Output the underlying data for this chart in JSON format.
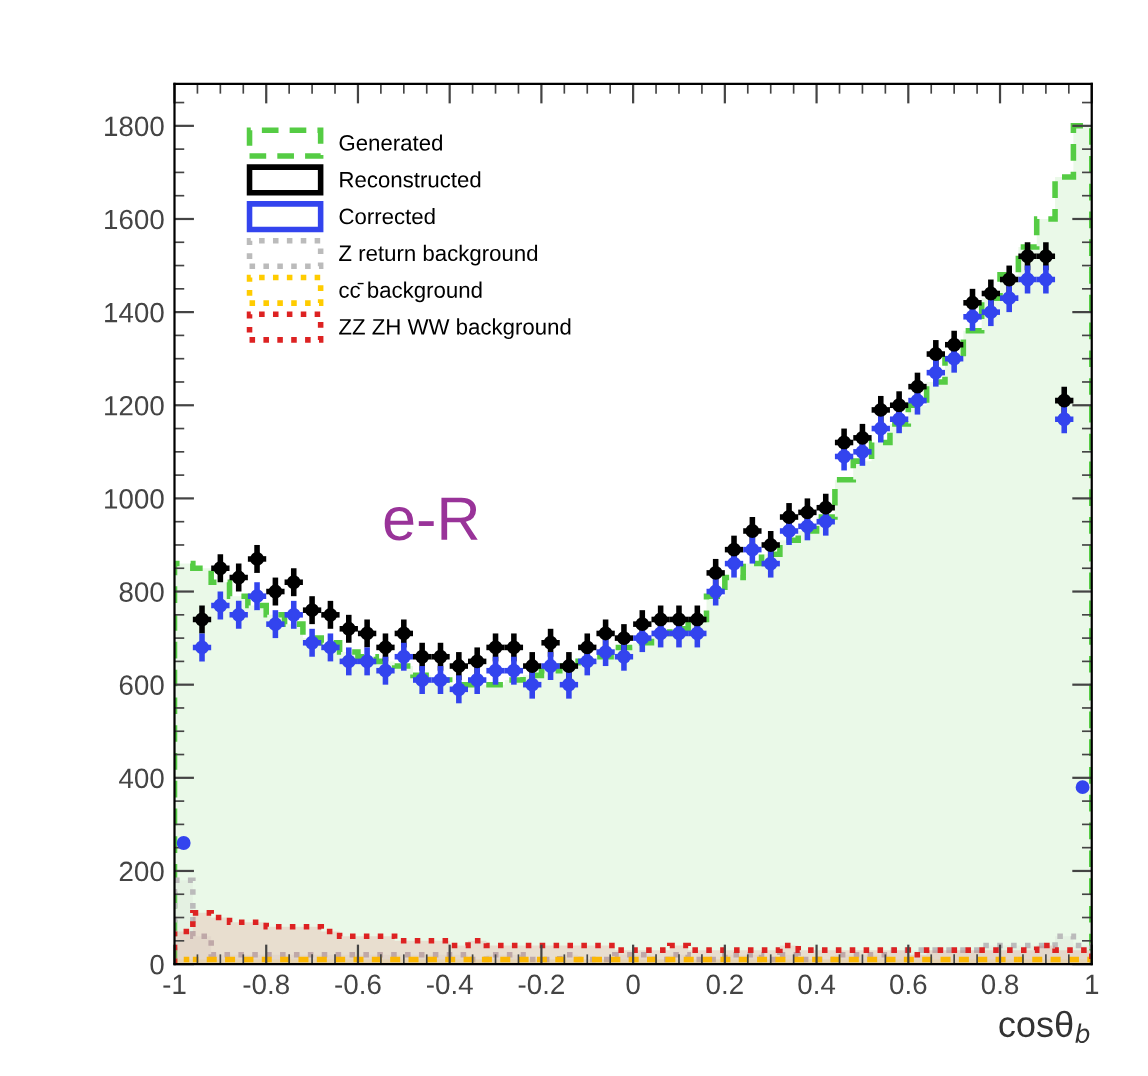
{
  "chart_data": {
    "type": "histogram",
    "xlabel": "cosθ$_{b}$",
    "bins": [
      -1,
      -0.96,
      -0.92,
      -0.88,
      -0.84,
      -0.8,
      -0.76,
      -0.72,
      -0.68,
      -0.64,
      -0.6,
      -0.56,
      -0.52,
      -0.48,
      -0.44,
      -0.4,
      -0.36,
      -0.32,
      -0.28,
      -0.24,
      -0.2,
      -0.16,
      -0.12,
      -0.08,
      -0.04,
      0,
      0.04,
      0.08,
      0.12,
      0.16,
      0.2,
      0.24,
      0.28,
      0.32,
      0.36,
      0.4,
      0.44,
      0.48,
      0.52,
      0.56,
      0.6,
      0.64,
      0.68,
      0.72,
      0.76,
      0.8,
      0.84,
      0.88,
      0.92,
      0.96,
      1
    ],
    "x": [
      -0.98,
      -0.94,
      -0.9,
      -0.86,
      -0.82,
      -0.78,
      -0.74,
      -0.7,
      -0.66,
      -0.62,
      -0.58,
      -0.54,
      -0.5,
      -0.46,
      -0.42,
      -0.38,
      -0.34,
      -0.3,
      -0.26,
      -0.22,
      -0.18,
      -0.14,
      -0.1,
      -0.06,
      -0.02,
      0.02,
      0.06,
      0.1,
      0.14,
      0.18,
      0.22,
      0.26,
      0.3,
      0.34,
      0.38,
      0.42,
      0.46,
      0.5,
      0.54,
      0.58,
      0.62,
      0.66,
      0.7,
      0.74,
      0.78,
      0.82,
      0.86,
      0.9,
      0.94,
      0.98
    ],
    "series": [
      {
        "name": "Generated",
        "type": "histogram",
        "color": "#55cc44",
        "line_style": "dashed",
        "values": [
          860,
          850,
          820,
          790,
          770,
          750,
          730,
          700,
          690,
          670,
          660,
          650,
          640,
          620,
          610,
          600,
          600,
          600,
          610,
          620,
          630,
          640,
          650,
          660,
          680,
          690,
          710,
          720,
          740,
          790,
          830,
          860,
          880,
          910,
          930,
          960,
          1040,
          1080,
          1120,
          1160,
          1200,
          1250,
          1300,
          1360,
          1430,
          1480,
          1540,
          1600,
          1690,
          1800
        ]
      },
      {
        "name": "Reconstructed",
        "type": "scatter",
        "color": "#000000",
        "values": [
          null,
          740,
          850,
          830,
          870,
          800,
          820,
          760,
          750,
          720,
          710,
          680,
          710,
          660,
          660,
          640,
          650,
          680,
          680,
          640,
          690,
          640,
          680,
          710,
          700,
          730,
          740,
          740,
          740,
          840,
          890,
          930,
          900,
          960,
          970,
          980,
          1120,
          1130,
          1190,
          1200,
          1240,
          1310,
          1330,
          1420,
          1440,
          1470,
          1520,
          1520,
          1210,
          null
        ],
        "errors": [
          null,
          30,
          30,
          30,
          30,
          30,
          30,
          30,
          30,
          30,
          30,
          30,
          30,
          30,
          30,
          30,
          30,
          30,
          30,
          30,
          30,
          30,
          30,
          30,
          30,
          30,
          30,
          30,
          30,
          30,
          30,
          30,
          30,
          30,
          30,
          30,
          30,
          30,
          30,
          30,
          30,
          30,
          30,
          30,
          30,
          30,
          30,
          30,
          30,
          null
        ],
        "xerrors": [
          null,
          0.02,
          0.02,
          0.02,
          0.02,
          0.02,
          0.02,
          0.02,
          0.02,
          0.02,
          0.02,
          0.02,
          0.02,
          0.02,
          0.02,
          0.02,
          0.02,
          0.02,
          0.02,
          0.02,
          0.02,
          0.02,
          0.02,
          0.02,
          0.02,
          0.02,
          0.02,
          0.02,
          0.02,
          0.02,
          0.02,
          0.02,
          0.02,
          0.02,
          0.02,
          0.02,
          0.02,
          0.02,
          0.02,
          0.02,
          0.02,
          0.02,
          0.02,
          0.02,
          0.02,
          0.02,
          0.02,
          0.02,
          0.02,
          null
        ]
      },
      {
        "name": "Corrected",
        "type": "scatter",
        "color": "#3344ee",
        "values": [
          260,
          680,
          770,
          750,
          790,
          730,
          750,
          690,
          680,
          650,
          650,
          630,
          660,
          610,
          610,
          590,
          610,
          630,
          630,
          600,
          640,
          600,
          650,
          670,
          660,
          700,
          710,
          710,
          710,
          800,
          860,
          890,
          860,
          930,
          940,
          950,
          1090,
          1100,
          1150,
          1170,
          1210,
          1270,
          1300,
          1390,
          1400,
          1430,
          1470,
          1470,
          1170,
          380
        ],
        "errors": [
          null,
          30,
          30,
          30,
          30,
          30,
          30,
          30,
          30,
          30,
          30,
          30,
          30,
          30,
          30,
          30,
          30,
          30,
          30,
          30,
          30,
          30,
          30,
          30,
          30,
          30,
          30,
          30,
          30,
          30,
          30,
          30,
          30,
          30,
          30,
          30,
          30,
          30,
          30,
          30,
          30,
          30,
          30,
          30,
          30,
          30,
          30,
          30,
          30,
          null
        ],
        "xerrors": [
          null,
          0.02,
          0.02,
          0.02,
          0.02,
          0.02,
          0.02,
          0.02,
          0.02,
          0.02,
          0.02,
          0.02,
          0.02,
          0.02,
          0.02,
          0.02,
          0.02,
          0.02,
          0.02,
          0.02,
          0.02,
          0.02,
          0.02,
          0.02,
          0.02,
          0.02,
          0.02,
          0.02,
          0.02,
          0.02,
          0.02,
          0.02,
          0.02,
          0.02,
          0.02,
          0.02,
          0.02,
          0.02,
          0.02,
          0.02,
          0.02,
          0.02,
          0.02,
          0.02,
          0.02,
          0.02,
          0.02,
          0.02,
          0.02,
          null
        ]
      },
      {
        "name": "Z return background",
        "type": "histogram",
        "color": "#bbbbbb",
        "line_style": "dotted",
        "values": [
          180,
          60,
          20,
          20,
          20,
          20,
          20,
          20,
          20,
          20,
          20,
          20,
          20,
          20,
          20,
          20,
          10,
          20,
          20,
          10,
          10,
          20,
          10,
          10,
          20,
          20,
          10,
          20,
          10,
          10,
          20,
          20,
          10,
          20,
          10,
          10,
          20,
          20,
          20,
          30,
          30,
          30,
          30,
          30,
          40,
          40,
          40,
          40,
          60,
          40
        ]
      },
      {
        "name": "cc̄ background",
        "type": "histogram",
        "color": "#ffcc00",
        "line_style": "dotted",
        "values": [
          10,
          10,
          10,
          10,
          10,
          10,
          10,
          10,
          10,
          10,
          10,
          10,
          10,
          10,
          10,
          10,
          10,
          10,
          10,
          10,
          10,
          10,
          10,
          10,
          10,
          10,
          10,
          10,
          10,
          10,
          10,
          10,
          10,
          10,
          10,
          10,
          10,
          10,
          10,
          10,
          10,
          10,
          10,
          10,
          10,
          10,
          10,
          10,
          10,
          10
        ]
      },
      {
        "name": "ZZ ZH WW background",
        "type": "histogram",
        "color": "#dd2222",
        "line_style": "dotted",
        "values": [
          70,
          110,
          100,
          90,
          90,
          80,
          80,
          80,
          70,
          60,
          60,
          60,
          50,
          50,
          50,
          40,
          50,
          40,
          40,
          40,
          40,
          40,
          40,
          40,
          30,
          30,
          30,
          40,
          30,
          30,
          30,
          30,
          30,
          40,
          30,
          30,
          30,
          30,
          30,
          30,
          20,
          30,
          30,
          30,
          30,
          30,
          30,
          40,
          30,
          30
        ]
      }
    ],
    "xlim": [
      -1,
      1
    ],
    "ylim": [
      0,
      1890
    ],
    "xticks": [
      -1,
      -0.8,
      -0.6,
      -0.4,
      -0.2,
      0,
      0.2,
      0.4,
      0.6,
      0.8,
      1
    ],
    "yticks": [
      0,
      200,
      400,
      600,
      800,
      1000,
      1200,
      1400,
      1600,
      1800
    ],
    "annotations": [
      "e-R"
    ],
    "marker": "circle",
    "legend": "top left",
    "grid": false
  }
}
